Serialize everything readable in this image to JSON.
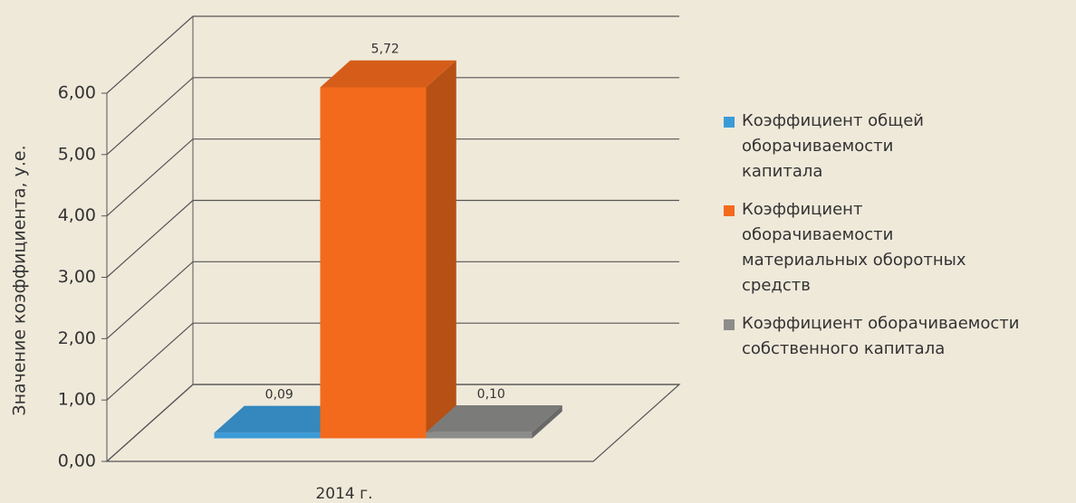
{
  "chart_data": {
    "type": "bar3d",
    "y_axis_label": "Значение коэффициента, у.е.",
    "categories": [
      "2014 г."
    ],
    "series": [
      {
        "name": "Коэффициент общей оборачиваемости капитала",
        "color": "#3b9bd8",
        "values": [
          0.09
        ],
        "value_labels": [
          "0,09"
        ]
      },
      {
        "name": "Коэффициент оборачиваемости материальных оборотных средств",
        "color": "#f36a1c",
        "values": [
          5.72
        ],
        "value_labels": [
          "5,72"
        ]
      },
      {
        "name": "Коэффициент оборачиваемости собственного капитала",
        "color": "#8c8c8a",
        "values": [
          0.1
        ],
        "value_labels": [
          "0,10"
        ]
      }
    ],
    "ylim": [
      0,
      6
    ],
    "yticks": [
      {
        "value": 0,
        "label": "0,00"
      },
      {
        "value": 1,
        "label": "1,00"
      },
      {
        "value": 2,
        "label": "2,00"
      },
      {
        "value": 3,
        "label": "3,00"
      },
      {
        "value": 4,
        "label": "4,00"
      },
      {
        "value": 5,
        "label": "5,00"
      },
      {
        "value": 6,
        "label": "6,00"
      }
    ],
    "grid": true,
    "legend": "right"
  }
}
